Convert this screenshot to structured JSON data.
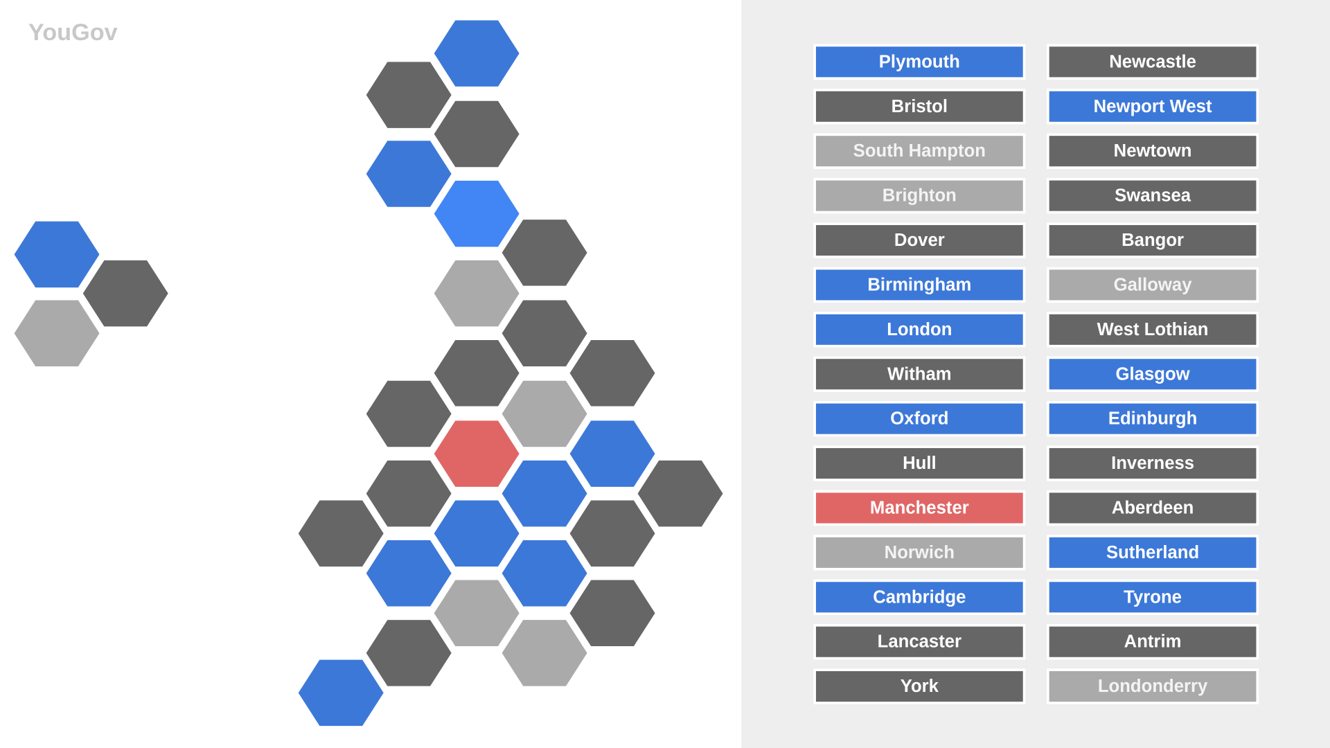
{
  "logo": "YouGov",
  "list": {
    "columns": [
      [
        {
          "label": "Plymouth",
          "color": "#3c78d8"
        },
        {
          "label": "Bristol",
          "color": "#666666"
        },
        {
          "label": "South Hampton",
          "color": "#aaaaaa"
        },
        {
          "label": "Brighton",
          "color": "#aaaaaa"
        },
        {
          "label": "Dover",
          "color": "#666666"
        },
        {
          "label": "Birmingham",
          "color": "#3c78d8"
        },
        {
          "label": "London",
          "color": "#3c78d8"
        },
        {
          "label": "Witham",
          "color": "#666666"
        },
        {
          "label": "Oxford",
          "color": "#3c78d8"
        },
        {
          "label": "Hull",
          "color": "#666666"
        },
        {
          "label": "Manchester",
          "color": "#e06666"
        },
        {
          "label": "Norwich",
          "color": "#aaaaaa"
        },
        {
          "label": "Cambridge",
          "color": "#3c78d8"
        },
        {
          "label": "Lancaster",
          "color": "#666666"
        },
        {
          "label": "York",
          "color": "#666666"
        }
      ],
      [
        {
          "label": "Newcastle",
          "color": "#666666"
        },
        {
          "label": "Newport West",
          "color": "#3c78d8"
        },
        {
          "label": "Newtown",
          "color": "#666666"
        },
        {
          "label": "Swansea",
          "color": "#666666"
        },
        {
          "label": "Bangor",
          "color": "#666666"
        },
        {
          "label": "Galloway",
          "color": "#aaaaaa"
        },
        {
          "label": "West Lothian",
          "color": "#666666"
        },
        {
          "label": "Glasgow",
          "color": "#3c78d8"
        },
        {
          "label": "Edinburgh",
          "color": "#3c78d8"
        },
        {
          "label": "Inverness",
          "color": "#666666"
        },
        {
          "label": "Aberdeen",
          "color": "#666666"
        },
        {
          "label": "Sutherland",
          "color": "#3c78d8"
        },
        {
          "label": "Tyrone",
          "color": "#3c78d8"
        },
        {
          "label": "Antrim",
          "color": "#666666"
        },
        {
          "label": "Londonderry",
          "color": "#aaaaaa"
        }
      ]
    ]
  }
}
